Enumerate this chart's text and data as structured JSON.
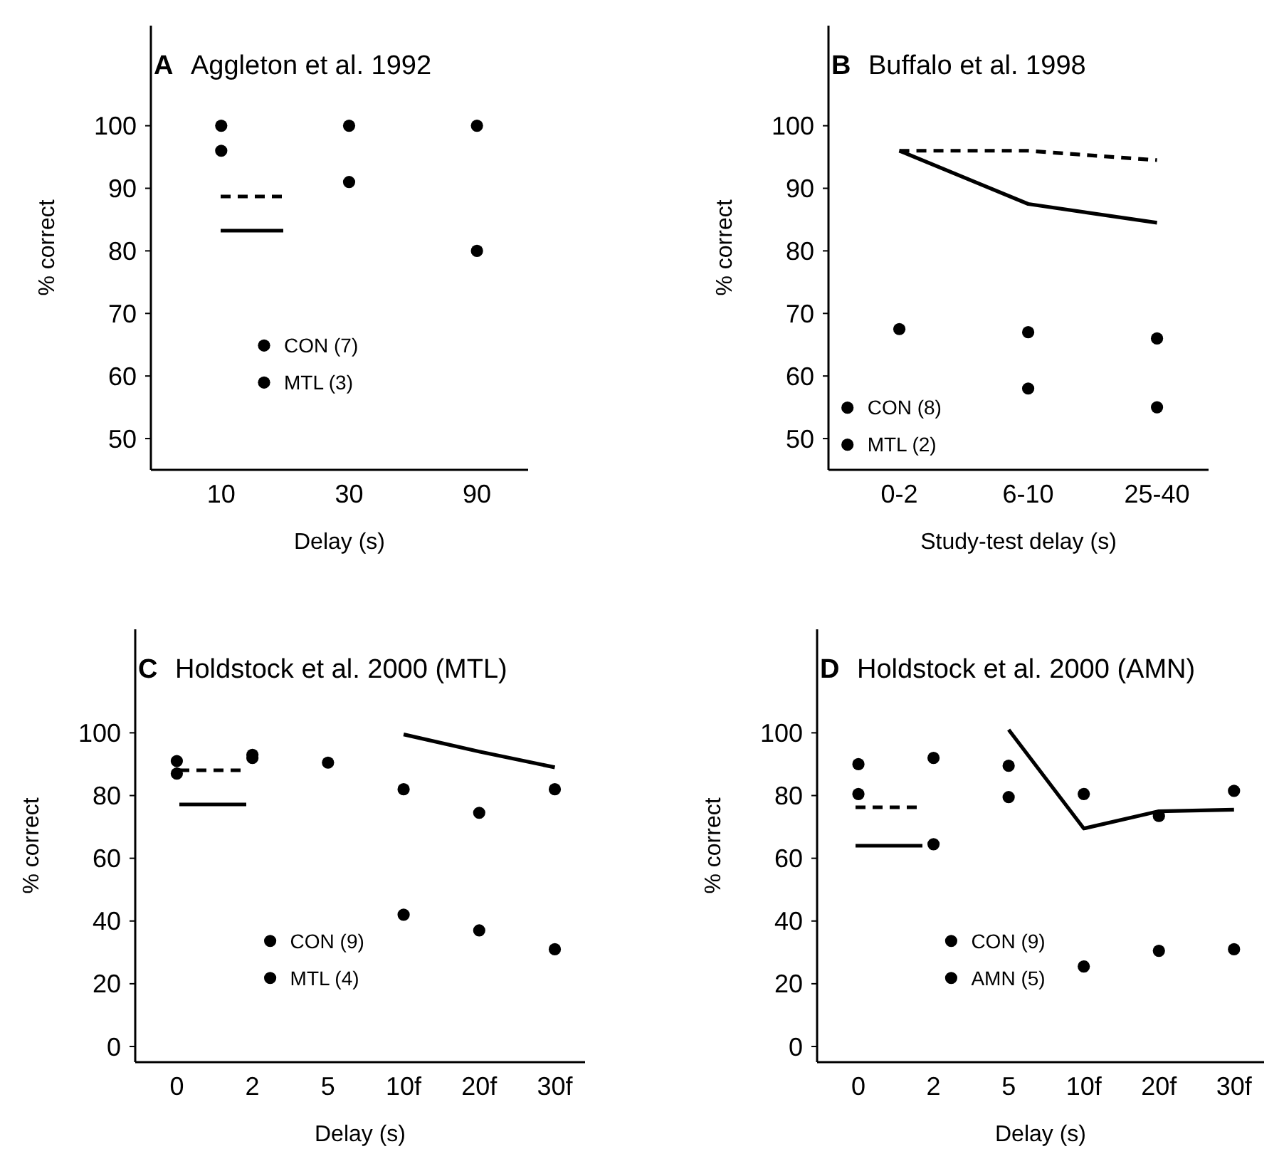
{
  "chart_data": [
    {
      "type": "scatter",
      "title": "Aggleton et al. 1992",
      "annotations": [
        "A"
      ],
      "xlabel": "Delay (s)",
      "ylabel": "% correct",
      "categories": [
        "10",
        "30",
        "90"
      ],
      "ylim": [
        45,
        116
      ],
      "yticks": [
        50,
        60,
        70,
        80,
        90,
        100
      ],
      "legend": "bottom",
      "series": [
        {
          "name": "CON (7)",
          "color": "#000000",
          "marker": "circle",
          "values": [
            100,
            100,
            100
          ]
        },
        {
          "name": "MTL (3)",
          "color": "#000000",
          "marker": "circle",
          "values": [
            96,
            91,
            80
          ]
        }
      ]
    },
    {
      "type": "scatter",
      "title": "Buffalo et al. 1998",
      "annotations": [
        "B"
      ],
      "xlabel": "Study-test delay (s)",
      "ylabel": "% correct",
      "categories": [
        "0-2",
        "6-10",
        "25-40"
      ],
      "ylim": [
        45,
        116
      ],
      "yticks": [
        50,
        60,
        70,
        80,
        90,
        100
      ],
      "legend": "bottom left",
      "series": [
        {
          "name": "CON (8)",
          "color": "#000000",
          "marker": "circle",
          "values": [
            67.5,
            67,
            66
          ]
        },
        {
          "name": "MTL (2)",
          "color": "#000000",
          "marker": "circle",
          "values": [
            null,
            58,
            55
          ]
        },
        {
          "type": "line",
          "line_style": "dashed",
          "color": "#000000",
          "values": [
            96,
            96,
            94.5
          ]
        },
        {
          "type": "line",
          "line_style": "solid",
          "color": "#000000",
          "values": [
            96,
            87.5,
            84.5
          ]
        }
      ]
    },
    {
      "type": "scatter",
      "title": "Holdstock et al. 2000 (MTL)",
      "annotations": [
        "C"
      ],
      "xlabel": "Delay (s)",
      "ylabel": "% correct",
      "categories": [
        "0",
        "2",
        "5",
        "10f",
        "20f",
        "30f"
      ],
      "ylim": [
        -5,
        133
      ],
      "yticks": [
        0,
        20,
        40,
        60,
        80,
        100
      ],
      "legend": "bottom",
      "series": [
        {
          "name": "CON (9)",
          "color": "#000000",
          "marker": "circle",
          "values": [
            91,
            93,
            90.5,
            82,
            74.5,
            82
          ]
        },
        {
          "name": "MTL (4)",
          "color": "#000000",
          "marker": "circle",
          "values": [
            87,
            92,
            null,
            42,
            37,
            31
          ]
        },
        {
          "type": "line",
          "line_style": "solid",
          "color": "#000000",
          "values": [
            null,
            null,
            null,
            99.5,
            94,
            89
          ]
        }
      ]
    },
    {
      "type": "scatter",
      "title": "Holdstock et al. 2000 (AMN)",
      "annotations": [
        "D"
      ],
      "xlabel": "Delay (s)",
      "ylabel": "% correct",
      "categories": [
        "0",
        "2",
        "5",
        "10f",
        "20f",
        "30f"
      ],
      "ylim": [
        -5,
        133
      ],
      "yticks": [
        0,
        20,
        40,
        60,
        80,
        100
      ],
      "legend": "bottom",
      "series": [
        {
          "name": "CON (9)",
          "color": "#000000",
          "marker": "circle",
          "values": [
            90,
            92,
            89.5,
            80.5,
            73.5,
            81.5
          ]
        },
        {
          "name": "AMN (5)",
          "color": "#000000",
          "marker": "circle",
          "values": [
            80.5,
            64.5,
            79.5,
            25.5,
            30.5,
            31
          ]
        },
        {
          "type": "line",
          "line_style": "solid",
          "color": "#000000",
          "values": [
            null,
            null,
            101,
            69.5,
            75,
            75.5
          ]
        }
      ]
    }
  ]
}
